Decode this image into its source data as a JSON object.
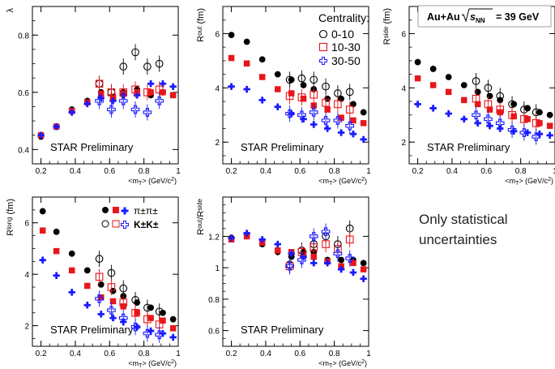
{
  "collision_box": {
    "prefix": "Au+Au",
    "energy": "= 39 GeV"
  },
  "note": "Only statistical uncertainties",
  "preliminary_label": "STAR Preliminary",
  "centrality_legend": {
    "title": "Centrality:",
    "entries": [
      "0-10",
      "10-30",
      "30-50"
    ]
  },
  "species_legend": [
    "π±π±",
    "K±K±"
  ],
  "colors": {
    "c0_10": "#000000",
    "c10_30": "#e8161b",
    "c30_50": "#1a1aff"
  },
  "chart_data": [
    {
      "type": "scatter",
      "id": "lambda",
      "ylabel": "λ",
      "xlabel": "<mT> (GeV/c²)",
      "xlim": [
        0.15,
        1.0
      ],
      "ylim": [
        0.35,
        0.9
      ],
      "xticks": [
        0.2,
        0.4,
        0.6,
        0.8,
        1
      ],
      "yticks": [
        0.4,
        0.6,
        0.8
      ],
      "series": [
        {
          "group": "pion",
          "cent": "0-10",
          "x": [
            0.2,
            0.29,
            0.38,
            0.47,
            0.55,
            0.62,
            0.68,
            0.76,
            0.84,
            0.91,
            0.97
          ],
          "y": [
            0.445,
            0.48,
            0.54,
            0.57,
            0.6,
            0.58,
            0.6,
            0.61,
            0.59,
            0.6,
            0.59
          ]
        },
        {
          "group": "pion",
          "cent": "10-30",
          "x": [
            0.2,
            0.29,
            0.38,
            0.47,
            0.55,
            0.62,
            0.68,
            0.76,
            0.84,
            0.91,
            0.97
          ],
          "y": [
            0.45,
            0.48,
            0.535,
            0.565,
            0.595,
            0.585,
            0.595,
            0.6,
            0.6,
            0.6,
            0.59
          ]
        },
        {
          "group": "pion",
          "cent": "30-50",
          "x": [
            0.2,
            0.29,
            0.38,
            0.47,
            0.55,
            0.62,
            0.68,
            0.76,
            0.84,
            0.91,
            0.97
          ],
          "y": [
            0.45,
            0.48,
            0.53,
            0.56,
            0.58,
            0.57,
            0.59,
            0.59,
            0.63,
            0.63,
            0.62
          ]
        },
        {
          "group": "kaon",
          "cent": "0-10",
          "x": [
            0.54,
            0.61,
            0.68,
            0.75,
            0.82,
            0.89
          ],
          "y": [
            0.63,
            0.6,
            0.69,
            0.74,
            0.69,
            0.7
          ]
        },
        {
          "group": "kaon",
          "cent": "10-30",
          "x": [
            0.54,
            0.61,
            0.68,
            0.75,
            0.82,
            0.89
          ],
          "y": [
            0.63,
            0.6,
            0.6,
            0.61,
            0.6,
            0.61
          ]
        },
        {
          "group": "kaon",
          "cent": "30-50",
          "x": [
            0.54,
            0.61,
            0.68,
            0.75,
            0.82,
            0.89
          ],
          "y": [
            0.57,
            0.54,
            0.57,
            0.54,
            0.53,
            0.57
          ]
        }
      ]
    },
    {
      "type": "scatter",
      "id": "rout",
      "ylabel": "Rout (fm)",
      "xlabel": "<mT> (GeV/c²)",
      "xlim": [
        0.15,
        1.0
      ],
      "ylim": [
        1.2,
        7.0
      ],
      "xticks": [
        0.2,
        0.4,
        0.6,
        0.8,
        1
      ],
      "yticks": [
        2,
        4,
        6
      ],
      "series": [
        {
          "group": "pion",
          "cent": "0-10",
          "x": [
            0.2,
            0.29,
            0.38,
            0.47,
            0.55,
            0.62,
            0.68,
            0.76,
            0.84,
            0.91,
            0.97
          ],
          "y": [
            5.95,
            5.7,
            5.05,
            4.5,
            4.3,
            4.1,
            3.95,
            3.6,
            3.6,
            3.4,
            3.1
          ]
        },
        {
          "group": "pion",
          "cent": "10-30",
          "x": [
            0.2,
            0.29,
            0.38,
            0.47,
            0.55,
            0.62,
            0.68,
            0.76,
            0.84,
            0.91,
            0.97
          ],
          "y": [
            5.1,
            4.9,
            4.4,
            3.95,
            3.8,
            3.6,
            3.35,
            3.2,
            2.9,
            2.8,
            2.7
          ]
        },
        {
          "group": "pion",
          "cent": "30-50",
          "x": [
            0.2,
            0.29,
            0.38,
            0.47,
            0.55,
            0.62,
            0.68,
            0.76,
            0.84,
            0.91,
            0.97
          ],
          "y": [
            4.05,
            3.95,
            3.55,
            3.3,
            3.05,
            2.85,
            2.65,
            2.5,
            2.35,
            2.3,
            2.1
          ]
        },
        {
          "group": "kaon",
          "cent": "0-10",
          "x": [
            0.54,
            0.61,
            0.68,
            0.75,
            0.82,
            0.89
          ],
          "y": [
            4.3,
            4.35,
            4.3,
            4.05,
            3.8,
            3.85
          ]
        },
        {
          "group": "kaon",
          "cent": "10-30",
          "x": [
            0.54,
            0.61,
            0.68,
            0.75,
            0.82,
            0.89
          ],
          "y": [
            3.7,
            3.65,
            3.75,
            3.45,
            3.4,
            3.2
          ]
        },
        {
          "group": "kaon",
          "cent": "30-50",
          "x": [
            0.54,
            0.61,
            0.68,
            0.75,
            0.82,
            0.89
          ],
          "y": [
            3.05,
            3.0,
            3.1,
            2.8,
            2.8,
            2.6
          ]
        }
      ]
    },
    {
      "type": "scatter",
      "id": "rside",
      "ylabel": "Rside (fm)",
      "xlabel": "<mT> (GeV/c²)",
      "xlim": [
        0.15,
        1.0
      ],
      "ylim": [
        1.2,
        7.0
      ],
      "xticks": [
        0.2,
        0.4,
        0.6,
        0.8,
        1
      ],
      "yticks": [
        2,
        4,
        6
      ],
      "series": [
        {
          "group": "pion",
          "cent": "0-10",
          "x": [
            0.2,
            0.29,
            0.38,
            0.47,
            0.55,
            0.62,
            0.68,
            0.76,
            0.84,
            0.91,
            0.97
          ],
          "y": [
            4.95,
            4.7,
            4.4,
            4.1,
            3.85,
            3.7,
            3.55,
            3.4,
            3.25,
            3.1,
            3.0
          ]
        },
        {
          "group": "pion",
          "cent": "10-30",
          "x": [
            0.2,
            0.29,
            0.38,
            0.47,
            0.55,
            0.62,
            0.68,
            0.76,
            0.84,
            0.91,
            0.97
          ],
          "y": [
            4.35,
            4.1,
            3.85,
            3.55,
            3.4,
            3.2,
            3.1,
            2.95,
            2.85,
            2.7,
            2.6
          ]
        },
        {
          "group": "pion",
          "cent": "30-50",
          "x": [
            0.2,
            0.29,
            0.38,
            0.47,
            0.55,
            0.62,
            0.68,
            0.76,
            0.84,
            0.91,
            0.97
          ],
          "y": [
            3.4,
            3.25,
            3.05,
            2.85,
            2.7,
            2.6,
            2.5,
            2.4,
            2.35,
            2.3,
            2.25
          ]
        },
        {
          "group": "kaon",
          "cent": "0-10",
          "x": [
            0.54,
            0.61,
            0.68,
            0.75,
            0.82,
            0.89
          ],
          "y": [
            4.25,
            4.0,
            3.7,
            3.4,
            3.2,
            3.1
          ]
        },
        {
          "group": "kaon",
          "cent": "10-30",
          "x": [
            0.54,
            0.61,
            0.68,
            0.75,
            0.82,
            0.89
          ],
          "y": [
            3.6,
            3.4,
            3.2,
            3.0,
            2.85,
            2.7
          ]
        },
        {
          "group": "kaon",
          "cent": "30-50",
          "x": [
            0.54,
            0.61,
            0.68,
            0.75,
            0.82,
            0.89
          ],
          "y": [
            3.0,
            2.85,
            2.7,
            2.45,
            2.35,
            2.2
          ]
        }
      ]
    },
    {
      "type": "scatter",
      "id": "rlong",
      "ylabel": "Rlong (fm)",
      "xlabel": "<mT> (GeV/c²)",
      "xlim": [
        0.15,
        1.0
      ],
      "ylim": [
        1.2,
        7.0
      ],
      "xticks": [
        0.2,
        0.4,
        0.6,
        0.8,
        1
      ],
      "yticks": [
        2,
        4,
        6
      ],
      "series": [
        {
          "group": "pion",
          "cent": "0-10",
          "x": [
            0.21,
            0.29,
            0.38,
            0.47,
            0.55,
            0.62,
            0.68,
            0.76,
            0.84,
            0.91,
            0.97
          ],
          "y": [
            6.45,
            5.65,
            4.8,
            4.15,
            3.6,
            3.35,
            3.15,
            2.9,
            2.7,
            2.5,
            2.25
          ]
        },
        {
          "group": "pion",
          "cent": "10-30",
          "x": [
            0.21,
            0.29,
            0.38,
            0.47,
            0.55,
            0.62,
            0.68,
            0.76,
            0.84,
            0.91,
            0.97
          ],
          "y": [
            5.7,
            4.9,
            4.15,
            3.55,
            3.1,
            2.95,
            2.75,
            2.5,
            2.3,
            2.2,
            1.9
          ]
        },
        {
          "group": "pion",
          "cent": "30-50",
          "x": [
            0.21,
            0.29,
            0.38,
            0.47,
            0.55,
            0.62,
            0.68,
            0.76,
            0.84,
            0.91,
            0.97
          ],
          "y": [
            4.55,
            3.95,
            3.3,
            2.8,
            2.45,
            2.3,
            2.15,
            1.95,
            1.8,
            1.7,
            1.55
          ]
        },
        {
          "group": "kaon",
          "cent": "0-10",
          "x": [
            0.54,
            0.61,
            0.68,
            0.75,
            0.82,
            0.89
          ],
          "y": [
            4.6,
            4.05,
            3.45,
            3.0,
            2.7,
            2.55
          ]
        },
        {
          "group": "kaon",
          "cent": "10-30",
          "x": [
            0.54,
            0.61,
            0.68,
            0.75,
            0.82,
            0.89
          ],
          "y": [
            3.9,
            3.5,
            2.9,
            2.5,
            2.25,
            2.05
          ]
        },
        {
          "group": "kaon",
          "cent": "30-50",
          "x": [
            0.54,
            0.61,
            0.68,
            0.75,
            0.82,
            0.89
          ],
          "y": [
            3.05,
            2.6,
            2.3,
            1.95,
            1.7,
            1.65
          ]
        }
      ]
    },
    {
      "type": "scatter",
      "id": "ratio",
      "ylabel": "Rout/Rside",
      "xlabel": "<mT> (GeV/c²)",
      "xlim": [
        0.15,
        1.0
      ],
      "ylim": [
        0.5,
        1.45
      ],
      "xticks": [
        0.2,
        0.4,
        0.6,
        0.8,
        1
      ],
      "yticks": [
        0.6,
        0.8,
        1,
        1.2
      ],
      "series": [
        {
          "group": "pion",
          "cent": "0-10",
          "x": [
            0.2,
            0.29,
            0.38,
            0.47,
            0.55,
            0.62,
            0.68,
            0.76,
            0.84,
            0.91,
            0.97
          ],
          "y": [
            1.19,
            1.21,
            1.15,
            1.1,
            1.07,
            1.1,
            1.1,
            1.05,
            1.05,
            1.05,
            1.03
          ]
        },
        {
          "group": "pion",
          "cent": "10-30",
          "x": [
            0.2,
            0.29,
            0.38,
            0.47,
            0.55,
            0.62,
            0.68,
            0.76,
            0.84,
            0.91,
            0.97
          ],
          "y": [
            1.18,
            1.2,
            1.16,
            1.11,
            1.1,
            1.08,
            1.07,
            1.04,
            1.01,
            1.03,
            0.99
          ]
        },
        {
          "group": "pion",
          "cent": "30-50",
          "x": [
            0.2,
            0.29,
            0.38,
            0.47,
            0.55,
            0.62,
            0.68,
            0.76,
            0.84,
            0.91,
            0.97
          ],
          "y": [
            1.19,
            1.22,
            1.18,
            1.15,
            1.09,
            1.07,
            1.03,
            1.03,
            0.99,
            0.97,
            0.93
          ]
        },
        {
          "group": "kaon",
          "cent": "0-10",
          "x": [
            0.54,
            0.61,
            0.68,
            0.75,
            0.82,
            0.89
          ],
          "y": [
            1.02,
            1.11,
            1.15,
            1.2,
            1.15,
            1.25
          ]
        },
        {
          "group": "kaon",
          "cent": "10-30",
          "x": [
            0.54,
            0.61,
            0.68,
            0.75,
            0.82,
            0.89
          ],
          "y": [
            1.01,
            1.1,
            1.13,
            1.15,
            1.12,
            1.18
          ]
        },
        {
          "group": "kaon",
          "cent": "30-50",
          "x": [
            0.54,
            0.61,
            0.68,
            0.75,
            0.82,
            0.89
          ],
          "y": [
            1.01,
            1.05,
            1.2,
            1.23,
            1.09,
            1.06
          ]
        }
      ]
    }
  ]
}
